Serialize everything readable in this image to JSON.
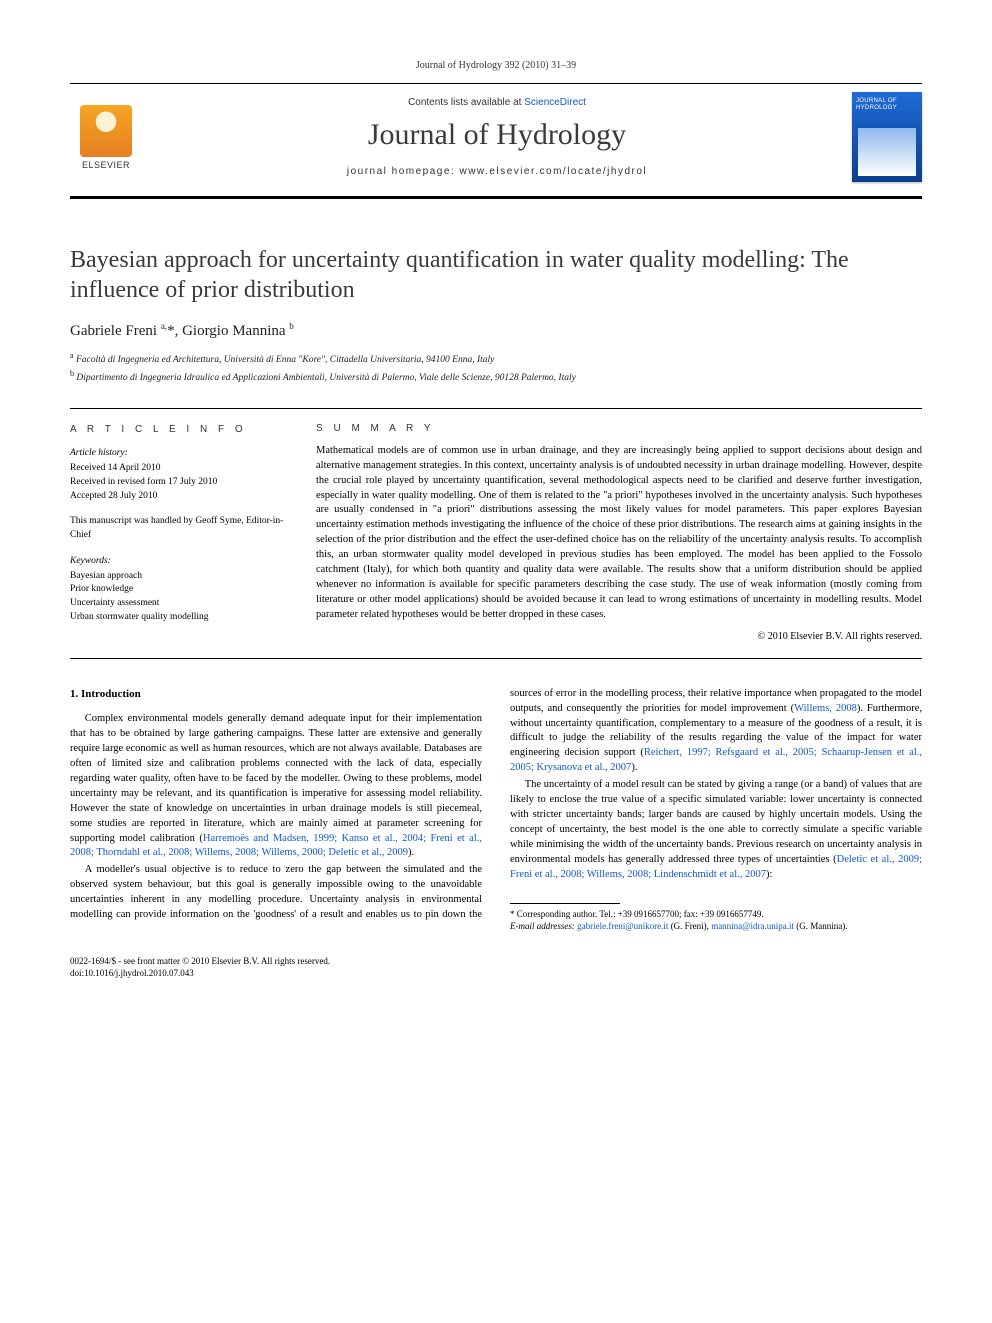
{
  "citation": "Journal of Hydrology 392 (2010) 31–39",
  "header": {
    "contents_prefix": "Contents lists available at ",
    "contents_link": "ScienceDirect",
    "journal_title": "Journal of Hydrology",
    "homepage_prefix": "journal homepage: ",
    "homepage_url": "www.elsevier.com/locate/jhydrol",
    "elsevier_label": "ELSEVIER",
    "cover_label": "JOURNAL OF HYDROLOGY"
  },
  "article": {
    "title": "Bayesian approach for uncertainty quantification in water quality modelling: The influence of prior distribution",
    "authors_html": "Gabriele Freni <sup>a,</sup>*, Giorgio Mannina <sup>b</sup>",
    "affiliations": [
      {
        "marker": "a",
        "text": "Facoltà di Ingegneria ed Architettura, Università di Enna \"Kore\", Cittadella Universitaria, 94100 Enna, Italy"
      },
      {
        "marker": "b",
        "text": "Dipartimento di Ingegneria Idraulica ed Applicazioni Ambientali, Università di Palermo, Viale delle Scienze, 90128 Palermo, Italy"
      }
    ]
  },
  "info": {
    "heading": "A R T I C L E   I N F O",
    "history_label": "Article history:",
    "history": [
      "Received 14 April 2010",
      "Received in revised form 17 July 2010",
      "Accepted 28 July 2010"
    ],
    "handled_by": "This manuscript was handled by Geoff Syme, Editor-in-Chief",
    "keywords_label": "Keywords:",
    "keywords": [
      "Bayesian approach",
      "Prior knowledge",
      "Uncertainty assessment",
      "Urban stormwater quality modelling"
    ]
  },
  "abstract": {
    "heading": "S U M M A R Y",
    "text": "Mathematical models are of common use in urban drainage, and they are increasingly being applied to support decisions about design and alternative management strategies. In this context, uncertainty analysis is of undoubted necessity in urban drainage modelling. However, despite the crucial role played by uncertainty quantification, several methodological aspects need to be clarified and deserve further investigation, especially in water quality modelling. One of them is related to the \"a priori\" hypotheses involved in the uncertainty analysis. Such hypotheses are usually condensed in \"a priori\" distributions assessing the most likely values for model parameters. This paper explores Bayesian uncertainty estimation methods investigating the influence of the choice of these prior distributions. The research aims at gaining insights in the selection of the prior distribution and the effect the user-defined choice has on the reliability of the uncertainty analysis results. To accomplish this, an urban stormwater quality model developed in previous studies has been employed. The model has been applied to the Fossolo catchment (Italy), for which both quantity and quality data were available. The results show that a uniform distribution should be applied whenever no information is available for specific parameters describing the case study. The use of weak information (mostly coming from literature or other model applications) should be avoided because it can lead to wrong estimations of uncertainty in modelling results. Model parameter related hypotheses would be better dropped in these cases.",
    "copyright": "© 2010 Elsevier B.V. All rights reserved."
  },
  "body": {
    "section_number": "1.",
    "section_title": "Introduction",
    "p1a": "Complex environmental models generally demand adequate input for their implementation that has to be obtained by large gathering campaigns. These latter are extensive and generally require large economic as well as human resources, which are not always available. Databases are often of limited size and calibration problems connected with the lack of data, especially regarding water quality, often have to be faced by the modeller. Owing to these problems, model uncertainty may be relevant, and its quantification is imperative for assessing model reliability. However the state of knowledge on uncertainties in urban drainage models is still piecemeal, some studies are reported in literature, which are mainly aimed at parameter screening for supporting model calibration (",
    "p1cite": "Harremoës and Madsen, 1999; Kanso et al., 2004; Freni et al., 2008; Thorndahl et al., 2008; Willems, 2008; Willems, 2000; Deletic et al., 2009",
    "p1b": ").",
    "p2a": "A modeller's usual objective is to reduce to zero the gap between the simulated and the observed system behaviour, but this goal is generally impossible owing to the unavoidable uncertainties inherent in any modelling procedure. Uncertainty analysis in environmental modelling can provide information on the 'goodness' of a result and enables us to pin down the sources of error in the modelling process, their relative importance when propagated to the model outputs, and consequently the priorities for model improvement (",
    "p2cite1": "Willems, 2008",
    "p2b": "). Furthermore, without uncertainty quantification, complementary to a measure of the goodness of a result, it is difficult to judge the reliability of the results regarding the value of the impact for water engineering decision support (",
    "p2cite2": "Reichert, 1997; Refsgaard et al., 2005; Schaarup-Jensen et al., 2005; Krysanova et al., 2007",
    "p2c": ").",
    "p3a": "The uncertainty of a model result can be stated by giving a range (or a band) of values that are likely to enclose the true value of a specific simulated variable: lower uncertainty is connected with stricter uncertainty bands; larger bands are caused by highly uncertain models. Using the concept of uncertainty, the best model is the one able to correctly simulate a specific variable while minimising the width of the uncertainty bands. Previous research on uncertainty analysis in environmental models has generally addressed three types of uncertainties (",
    "p3cite": "Deletic et al., 2009; Freni et al., 2008; Willems, 2008; Lindenschmidt et al., 2007",
    "p3b": "):"
  },
  "footnotes": {
    "corr_label": "* Corresponding author. Tel.: +39 0916657700; fax: +39 0916657749.",
    "email_label": "E-mail addresses:",
    "email1": "gabriele.freni@unikore.it",
    "email1_who": "(G. Freni),",
    "email2": "mannina@idra.unipa.it",
    "email2_who": "(G. Mannina)."
  },
  "bottom": {
    "issn": "0022-1694/$ - see front matter © 2010 Elsevier B.V. All rights reserved.",
    "doi": "doi:10.1016/j.jhydrol.2010.07.043"
  },
  "colors": {
    "link": "#1157cc",
    "text": "#000000",
    "heading": "#3a3a3a"
  }
}
